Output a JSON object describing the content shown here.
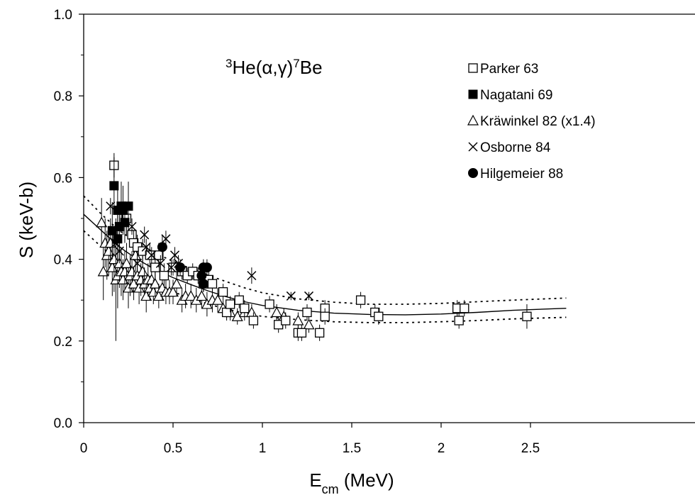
{
  "chart_data": {
    "type": "scatter",
    "title": "",
    "reaction_label": {
      "parts": [
        {
          "text": "3",
          "sup": true
        },
        {
          "text": "He(α,γ)"
        },
        {
          "text": "7",
          "sup": true
        },
        {
          "text": "Be"
        }
      ]
    },
    "xlabel": {
      "main": "E",
      "sub": "cm",
      "rest": " (MeV)"
    },
    "ylabel": "S (keV-b)",
    "xlim": [
      0,
      2.75
    ],
    "ylim": [
      0,
      1.0
    ],
    "x_ticks": [
      "0",
      "0.5",
      "1",
      "1.5",
      "2",
      "2.5"
    ],
    "y_ticks": [
      "0.0",
      "0.2",
      "0.4",
      "0.6",
      "0.8",
      "1.0"
    ],
    "grid": false,
    "legend_position": "top-right",
    "series": [
      {
        "name": "Parker 63",
        "marker": "open-square",
        "points": [
          [
            0.17,
            0.63,
            0.03
          ],
          [
            0.24,
            0.5,
            0.04
          ],
          [
            0.27,
            0.46,
            0.03
          ],
          [
            0.28,
            0.44,
            0.03
          ],
          [
            0.3,
            0.43,
            0.03
          ],
          [
            0.33,
            0.42,
            0.03
          ],
          [
            0.37,
            0.41,
            0.03
          ],
          [
            0.4,
            0.38,
            0.03
          ],
          [
            0.42,
            0.41,
            0.03
          ],
          [
            0.45,
            0.36,
            0.03
          ],
          [
            0.5,
            0.38,
            0.02
          ],
          [
            0.55,
            0.37,
            0.02
          ],
          [
            0.58,
            0.36,
            0.02
          ],
          [
            0.61,
            0.37,
            0.02
          ],
          [
            0.64,
            0.36,
            0.02
          ],
          [
            0.67,
            0.34,
            0.02
          ],
          [
            0.7,
            0.35,
            0.02
          ],
          [
            0.72,
            0.34,
            0.02
          ],
          [
            0.78,
            0.32,
            0.02
          ],
          [
            0.8,
            0.27,
            0.02
          ],
          [
            0.82,
            0.29,
            0.02
          ],
          [
            0.87,
            0.3,
            0.02
          ],
          [
            0.9,
            0.28,
            0.02
          ],
          [
            0.95,
            0.25,
            0.02
          ],
          [
            1.04,
            0.29,
            0.02
          ],
          [
            1.09,
            0.24,
            0.02
          ],
          [
            1.13,
            0.25,
            0.02
          ],
          [
            1.2,
            0.22,
            0.02
          ],
          [
            1.22,
            0.22,
            0.02
          ],
          [
            1.25,
            0.27,
            0.02
          ],
          [
            1.32,
            0.22,
            0.02
          ],
          [
            1.35,
            0.28,
            0.02
          ],
          [
            1.35,
            0.26,
            0.02
          ],
          [
            1.55,
            0.3,
            0.02
          ],
          [
            1.63,
            0.27,
            0.02
          ],
          [
            1.65,
            0.26,
            0.02
          ],
          [
            2.09,
            0.28,
            0.02
          ],
          [
            2.1,
            0.25,
            0.02
          ],
          [
            2.13,
            0.28,
            0.02
          ],
          [
            2.48,
            0.26,
            0.03
          ]
        ]
      },
      {
        "name": "Nagatani 69",
        "marker": "filled-square",
        "points": [
          [
            0.16,
            0.47,
            0.07
          ],
          [
            0.17,
            0.58,
            0.07
          ],
          [
            0.19,
            0.52,
            0.07
          ],
          [
            0.2,
            0.48,
            0.06
          ],
          [
            0.21,
            0.53,
            0.06
          ],
          [
            0.22,
            0.52,
            0.06
          ],
          [
            0.23,
            0.49,
            0.05
          ],
          [
            0.25,
            0.53,
            0.06
          ],
          [
            0.19,
            0.45,
            0.06
          ]
        ]
      },
      {
        "name": "Kräwinkel 82 (x1.4)",
        "marker": "open-triangle",
        "points": [
          [
            0.1,
            0.49,
            0.06
          ],
          [
            0.11,
            0.37,
            0.07
          ],
          [
            0.12,
            0.44,
            0.06
          ],
          [
            0.13,
            0.41,
            0.06
          ],
          [
            0.14,
            0.42,
            0.06
          ],
          [
            0.15,
            0.44,
            0.06
          ],
          [
            0.16,
            0.38,
            0.07
          ],
          [
            0.17,
            0.4,
            0.08
          ],
          [
            0.18,
            0.35,
            0.15
          ],
          [
            0.19,
            0.36,
            0.08
          ],
          [
            0.2,
            0.39,
            0.06
          ],
          [
            0.21,
            0.37,
            0.06
          ],
          [
            0.22,
            0.35,
            0.05
          ],
          [
            0.23,
            0.37,
            0.05
          ],
          [
            0.24,
            0.39,
            0.05
          ],
          [
            0.25,
            0.33,
            0.05
          ],
          [
            0.26,
            0.36,
            0.05
          ],
          [
            0.27,
            0.37,
            0.05
          ],
          [
            0.28,
            0.34,
            0.04
          ],
          [
            0.29,
            0.41,
            0.04
          ],
          [
            0.3,
            0.36,
            0.04
          ],
          [
            0.31,
            0.33,
            0.04
          ],
          [
            0.32,
            0.35,
            0.04
          ],
          [
            0.33,
            0.37,
            0.04
          ],
          [
            0.34,
            0.34,
            0.04
          ],
          [
            0.35,
            0.31,
            0.04
          ],
          [
            0.36,
            0.35,
            0.04
          ],
          [
            0.37,
            0.33,
            0.03
          ],
          [
            0.38,
            0.35,
            0.03
          ],
          [
            0.39,
            0.32,
            0.03
          ],
          [
            0.4,
            0.34,
            0.03
          ],
          [
            0.42,
            0.31,
            0.03
          ],
          [
            0.44,
            0.33,
            0.03
          ],
          [
            0.46,
            0.32,
            0.03
          ],
          [
            0.48,
            0.32,
            0.03
          ],
          [
            0.5,
            0.32,
            0.03
          ],
          [
            0.52,
            0.34,
            0.03
          ],
          [
            0.55,
            0.3,
            0.03
          ],
          [
            0.57,
            0.31,
            0.03
          ],
          [
            0.6,
            0.31,
            0.03
          ],
          [
            0.63,
            0.3,
            0.03
          ],
          [
            0.66,
            0.31,
            0.03
          ],
          [
            0.69,
            0.29,
            0.03
          ],
          [
            0.72,
            0.3,
            0.03
          ],
          [
            0.75,
            0.3,
            0.03
          ],
          [
            0.78,
            0.28,
            0.02
          ],
          [
            0.82,
            0.27,
            0.02
          ],
          [
            0.86,
            0.26,
            0.02
          ],
          [
            0.9,
            0.27,
            0.02
          ],
          [
            0.94,
            0.27,
            0.02
          ],
          [
            1.08,
            0.27,
            0.02
          ],
          [
            1.12,
            0.26,
            0.02
          ],
          [
            1.2,
            0.25,
            0.02
          ],
          [
            1.26,
            0.24,
            0.02
          ]
        ]
      },
      {
        "name": "Osborne 84",
        "marker": "x",
        "points": [
          [
            0.15,
            0.53,
            0.02
          ],
          [
            0.18,
            0.44,
            0.03
          ],
          [
            0.2,
            0.42,
            0.03
          ],
          [
            0.27,
            0.48,
            0.02
          ],
          [
            0.3,
            0.39,
            0.02
          ],
          [
            0.34,
            0.46,
            0.02
          ],
          [
            0.35,
            0.43,
            0.02
          ],
          [
            0.38,
            0.41,
            0.02
          ],
          [
            0.43,
            0.39,
            0.02
          ],
          [
            0.46,
            0.45,
            0.02
          ],
          [
            0.49,
            0.38,
            0.02
          ],
          [
            0.51,
            0.41,
            0.02
          ],
          [
            0.53,
            0.39,
            0.02
          ],
          [
            0.94,
            0.36,
            0.02
          ],
          [
            1.16,
            0.31,
            0.01
          ],
          [
            1.26,
            0.31,
            0.01
          ]
        ]
      },
      {
        "name": "Hilgemeier 88",
        "marker": "filled-circle",
        "points": [
          [
            0.44,
            0.43,
            0.03
          ],
          [
            0.54,
            0.38,
            0.02
          ],
          [
            0.66,
            0.36,
            0.02
          ],
          [
            0.67,
            0.34,
            0.02
          ],
          [
            0.67,
            0.38,
            0.02
          ],
          [
            0.69,
            0.38,
            0.02
          ]
        ]
      }
    ],
    "fit_curves": [
      {
        "style": "solid",
        "points": [
          [
            0,
            0.51
          ],
          [
            0.1,
            0.47
          ],
          [
            0.2,
            0.43
          ],
          [
            0.3,
            0.4
          ],
          [
            0.4,
            0.375
          ],
          [
            0.5,
            0.355
          ],
          [
            0.6,
            0.338
          ],
          [
            0.7,
            0.322
          ],
          [
            0.8,
            0.308
          ],
          [
            0.9,
            0.296
          ],
          [
            1.0,
            0.287
          ],
          [
            1.2,
            0.275
          ],
          [
            1.4,
            0.268
          ],
          [
            1.6,
            0.265
          ],
          [
            1.8,
            0.264
          ],
          [
            2.0,
            0.266
          ],
          [
            2.2,
            0.27
          ],
          [
            2.4,
            0.275
          ],
          [
            2.7,
            0.28
          ]
        ]
      },
      {
        "style": "dotted",
        "points": [
          [
            0,
            0.555
          ],
          [
            0.1,
            0.51
          ],
          [
            0.2,
            0.47
          ],
          [
            0.3,
            0.44
          ],
          [
            0.4,
            0.415
          ],
          [
            0.5,
            0.395
          ],
          [
            0.6,
            0.377
          ],
          [
            0.7,
            0.36
          ],
          [
            0.8,
            0.345
          ],
          [
            0.9,
            0.33
          ],
          [
            1.0,
            0.318
          ],
          [
            1.2,
            0.303
          ],
          [
            1.4,
            0.295
          ],
          [
            1.6,
            0.29
          ],
          [
            1.8,
            0.29
          ],
          [
            2.0,
            0.292
          ],
          [
            2.2,
            0.296
          ],
          [
            2.4,
            0.3
          ],
          [
            2.7,
            0.305
          ]
        ]
      },
      {
        "style": "dotted",
        "points": [
          [
            0,
            0.47
          ],
          [
            0.1,
            0.43
          ],
          [
            0.2,
            0.395
          ],
          [
            0.3,
            0.365
          ],
          [
            0.4,
            0.34
          ],
          [
            0.5,
            0.32
          ],
          [
            0.6,
            0.305
          ],
          [
            0.7,
            0.29
          ],
          [
            0.8,
            0.278
          ],
          [
            0.9,
            0.268
          ],
          [
            1.0,
            0.26
          ],
          [
            1.2,
            0.252
          ],
          [
            1.4,
            0.247
          ],
          [
            1.6,
            0.245
          ],
          [
            1.8,
            0.245
          ],
          [
            2.0,
            0.247
          ],
          [
            2.2,
            0.25
          ],
          [
            2.4,
            0.254
          ],
          [
            2.7,
            0.258
          ]
        ]
      }
    ]
  }
}
